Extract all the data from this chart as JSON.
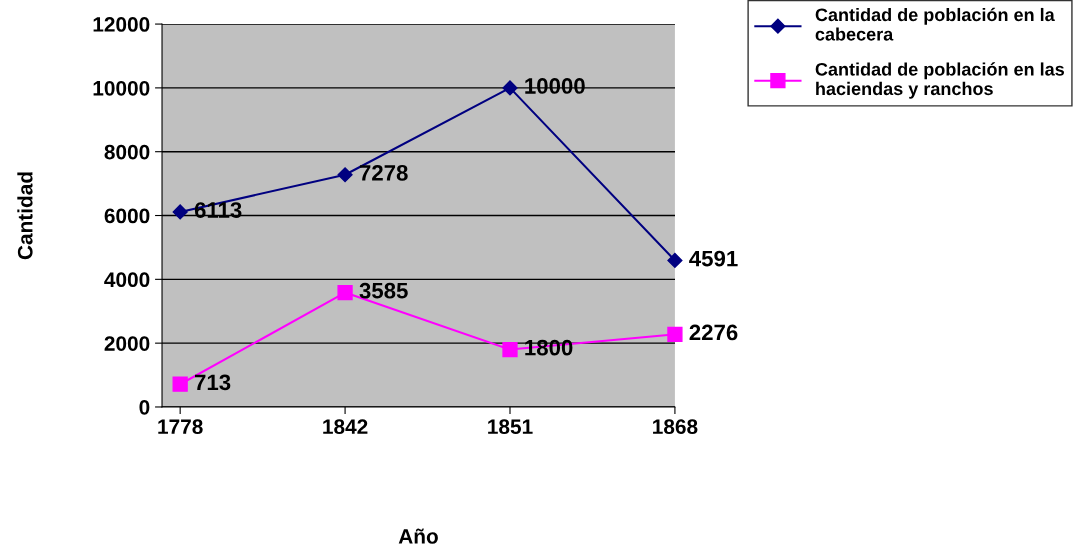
{
  "chart_data": {
    "type": "line",
    "xlabel": "Año",
    "ylabel": "Cantidad",
    "categories": [
      "1778",
      "1842",
      "1851",
      "1868"
    ],
    "series": [
      {
        "name": "Cantidad de población en la cabecera",
        "color": "#000080",
        "marker": "diamond",
        "values": [
          6113,
          7278,
          10000,
          4591
        ]
      },
      {
        "name": "Cantidad de población en las haciendas y ranchos",
        "color": "#ff00ff",
        "marker": "square",
        "values": [
          713,
          3585,
          1800,
          2276
        ]
      }
    ],
    "ylim": [
      0,
      12000
    ],
    "yticks": [
      0,
      2000,
      4000,
      6000,
      8000,
      10000,
      12000
    ],
    "grid": "y",
    "legend": "top right",
    "data_labels": true
  }
}
